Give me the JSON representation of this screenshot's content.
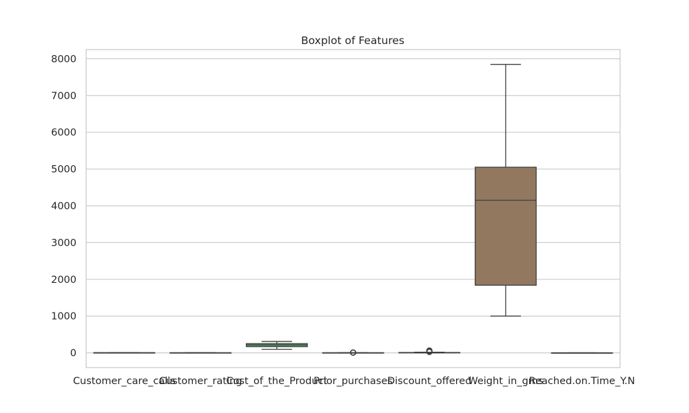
{
  "chart_data": {
    "type": "box",
    "title": "Boxplot of Features",
    "xlabel": "",
    "ylabel": "",
    "ylim": [
      -400,
      8250
    ],
    "y_ticks": [
      0,
      1000,
      2000,
      3000,
      4000,
      5000,
      6000,
      7000,
      8000
    ],
    "grid": "horizontal",
    "categories": [
      "Customer_care_calls",
      "Customer_rating",
      "Cost_of_the_Product",
      "Prior_purchases",
      "Discount_offered",
      "Weight_in_gms",
      "Reached.on.Time_Y.N"
    ],
    "colors": [
      "#4c72b0",
      "#dd8452",
      "#55a868",
      "#c44e52",
      "#8172b3",
      "#937860",
      "#da8bc3"
    ],
    "boxes": [
      {
        "whislo": 2,
        "q1": 3,
        "med": 4,
        "q3": 5,
        "whishi": 7,
        "fliers": []
      },
      {
        "whislo": 1,
        "q1": 2,
        "med": 3,
        "q3": 4,
        "whishi": 5,
        "fliers": []
      },
      {
        "whislo": 96,
        "q1": 169,
        "med": 214,
        "q3": 251,
        "whishi": 310,
        "fliers": []
      },
      {
        "whislo": 2,
        "q1": 3,
        "med": 3,
        "q3": 4,
        "whishi": 5,
        "fliers": [
          6,
          7,
          8,
          10
        ]
      },
      {
        "whislo": 1,
        "q1": 4,
        "med": 7,
        "q3": 10,
        "whishi": 19,
        "fliers": [
          25,
          35,
          45,
          55,
          65
        ]
      },
      {
        "whislo": 1001,
        "q1": 1840,
        "med": 4149,
        "q3": 5050,
        "whishi": 7846,
        "fliers": []
      },
      {
        "whislo": 0,
        "q1": 0,
        "med": 1,
        "q3": 1,
        "whishi": 1,
        "fliers": []
      }
    ]
  }
}
